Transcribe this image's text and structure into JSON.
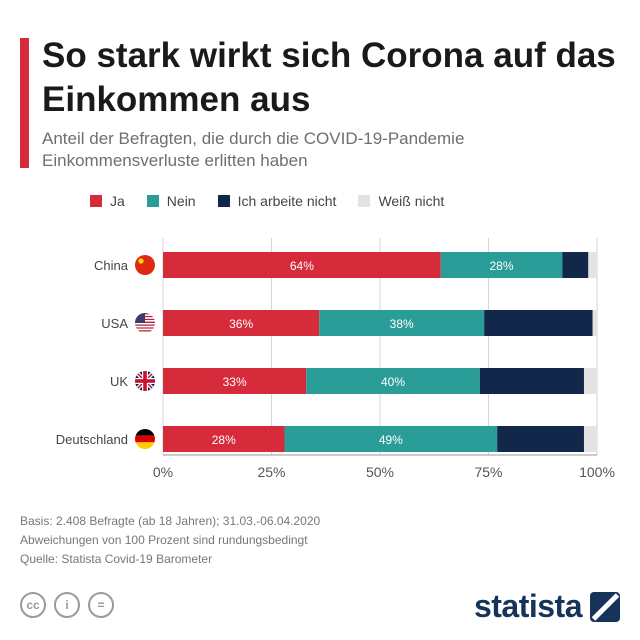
{
  "header": {
    "title": "So stark wirkt sich Corona auf das Einkommen aus",
    "subtitle": "Anteil der Befragten, die durch die COVID-19-Pandemie Einkommensverluste erlitten haben",
    "accent_color": "#d62b3a"
  },
  "legend": [
    {
      "label": "Ja",
      "color": "#d62b3a"
    },
    {
      "label": "Nein",
      "color": "#2a9d98"
    },
    {
      "label": "Ich arbeite nicht",
      "color": "#12284a"
    },
    {
      "label": "Weiß nicht",
      "color": "#e3e3e3"
    }
  ],
  "chart_data": {
    "type": "bar",
    "orientation": "horizontal",
    "stacked": true,
    "categories": [
      "China",
      "USA",
      "UK",
      "Deutschland"
    ],
    "series": [
      {
        "name": "Ja",
        "values": [
          64,
          36,
          33,
          28
        ],
        "labels": [
          "64%",
          "36%",
          "33%",
          "28%"
        ],
        "color": "#d62b3a"
      },
      {
        "name": "Nein",
        "values": [
          28,
          38,
          40,
          49
        ],
        "labels": [
          "28%",
          "38%",
          "40%",
          "49%"
        ],
        "color": "#2a9d98"
      },
      {
        "name": "Ich arbeite nicht",
        "values": [
          6,
          25,
          24,
          20
        ],
        "labels": [
          "",
          "",
          "",
          ""
        ],
        "color": "#12284a"
      },
      {
        "name": "Weiß nicht",
        "values": [
          2,
          1,
          3,
          3
        ],
        "labels": [
          "",
          "",
          "",
          ""
        ],
        "color": "#e3e3e3"
      }
    ],
    "flags": [
      "china",
      "usa",
      "uk",
      "germany"
    ],
    "xlim": [
      0,
      100
    ],
    "xticks": [
      0,
      25,
      50,
      75,
      100
    ],
    "xtick_labels": [
      "0%",
      "25%",
      "50%",
      "75%",
      "100%"
    ],
    "grid": true,
    "legend_position": "top"
  },
  "footer": {
    "lines": [
      "Basis: 2.408 Befragte (ab 18 Jahren); 31.03.-06.04.2020",
      "Abweichungen von 100 Prozent sind rundungsbedingt",
      "Quelle: Statista Covid-19 Barometer"
    ]
  },
  "social": [
    {
      "icon": "creative-commons-icon",
      "glyph": "cc"
    },
    {
      "icon": "info-icon",
      "glyph": "i"
    },
    {
      "icon": "equals-icon",
      "glyph": "="
    }
  ],
  "brand": {
    "name": "statista"
  }
}
